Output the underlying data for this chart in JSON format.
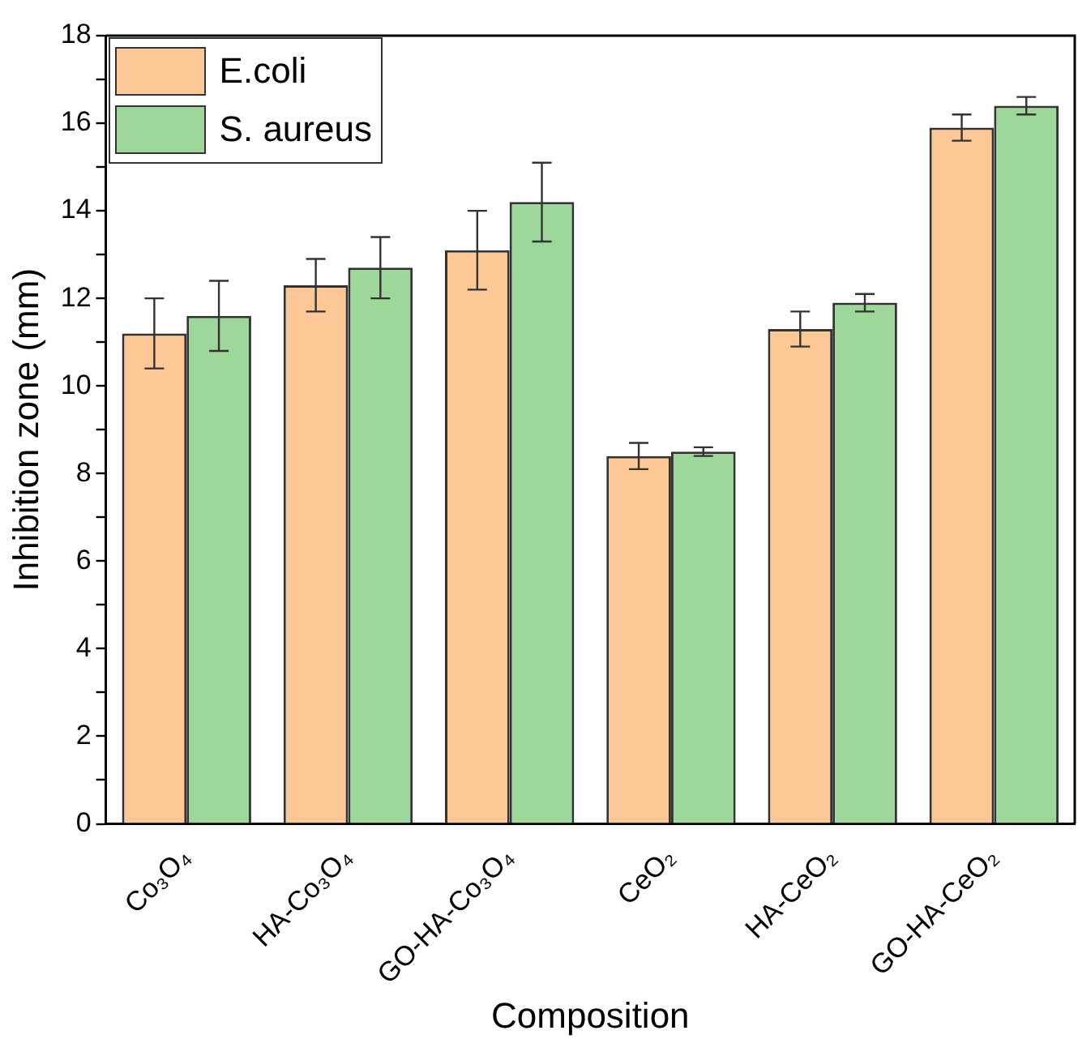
{
  "chart_data": {
    "type": "bar",
    "xlabel": "Composition",
    "ylabel": "Inhibition zone (mm)",
    "categories": [
      "Co₃O₄",
      "HA-Co₃O₄",
      "GO-HA-Co₃O₄",
      "CeO₂",
      "HA-CeO₂",
      "GO-HA-CeO₂"
    ],
    "series": [
      {
        "name": "E.coli",
        "color": "#fdc896",
        "values": [
          11.2,
          12.3,
          13.1,
          8.4,
          11.3,
          15.9
        ],
        "errors": [
          0.8,
          0.6,
          0.9,
          0.3,
          0.4,
          0.3
        ]
      },
      {
        "name": "S. aureus",
        "color": "#9dd79a",
        "values": [
          11.6,
          12.7,
          14.2,
          8.5,
          11.9,
          16.4
        ],
        "errors": [
          0.8,
          0.7,
          0.9,
          0.1,
          0.2,
          0.2
        ]
      }
    ],
    "ylim": [
      0,
      18
    ],
    "yticks": [
      0,
      {
        "value": 1,
        "label": null
      },
      2,
      {
        "value": 3,
        "label": null
      },
      4,
      {
        "value": 5,
        "label": null
      },
      6,
      {
        "value": 7,
        "label": null
      },
      8,
      {
        "value": 9,
        "label": null
      },
      10,
      {
        "value": 11,
        "label": null
      },
      12,
      {
        "value": 13,
        "label": null
      },
      14,
      {
        "value": 15,
        "label": null
      },
      16,
      {
        "value": 17,
        "label": null
      },
      18
    ],
    "legend": "top left",
    "grid": false
  }
}
